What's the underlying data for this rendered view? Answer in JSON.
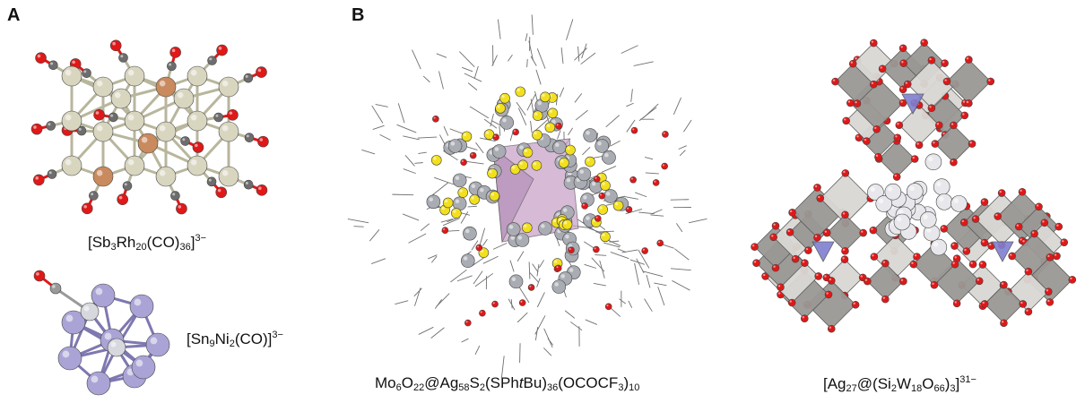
{
  "panels": {
    "a": {
      "letter": "A"
    },
    "b": {
      "letter": "B"
    }
  },
  "formulas": {
    "sb3rh20": {
      "p1": "[Sb",
      "s1": "3",
      "p2": "Rh",
      "s2": "20",
      "p3": "(CO)",
      "s3": "36",
      "p4": "]",
      "charge": "3−"
    },
    "sn9ni2": {
      "p1": "[Sn",
      "s1": "9",
      "p2": "Ni",
      "s2": "2",
      "p3": "(CO)]",
      "charge": "3−"
    },
    "mo6o22": {
      "p1": "Mo",
      "s1": "6",
      "p2": "O",
      "s2": "22",
      "p3": "@Ag",
      "s3": "58",
      "p4": "S",
      "s4": "2",
      "p5": "(SPh",
      "t": "t",
      "p6": "Bu)",
      "s6": "36",
      "p7": "(OCOCF",
      "s7": "3",
      "p8": ")",
      "s8": "10"
    },
    "ag27": {
      "p1": "[Ag",
      "s1": "27",
      "p2": "@(Si",
      "s2": "2",
      "p3": "W",
      "s3": "18",
      "p4": "O",
      "s4": "66",
      "p5": ")",
      "s5": "3",
      "p6": "]",
      "charge": "31−"
    }
  },
  "colors": {
    "rhodium": "#d9d6c0",
    "antimony": "#c98a5e",
    "carbon": "#6d6d6d",
    "oxygen": "#e01818",
    "tin": "#a9a3d6",
    "nickel": "#d6d8de",
    "silver": "#a9acb3",
    "sulfur": "#f2e01c",
    "mo_octa": "#c9a3c9",
    "w_poly": "#9a9894",
    "si_tetra": "#7f7fd1"
  }
}
